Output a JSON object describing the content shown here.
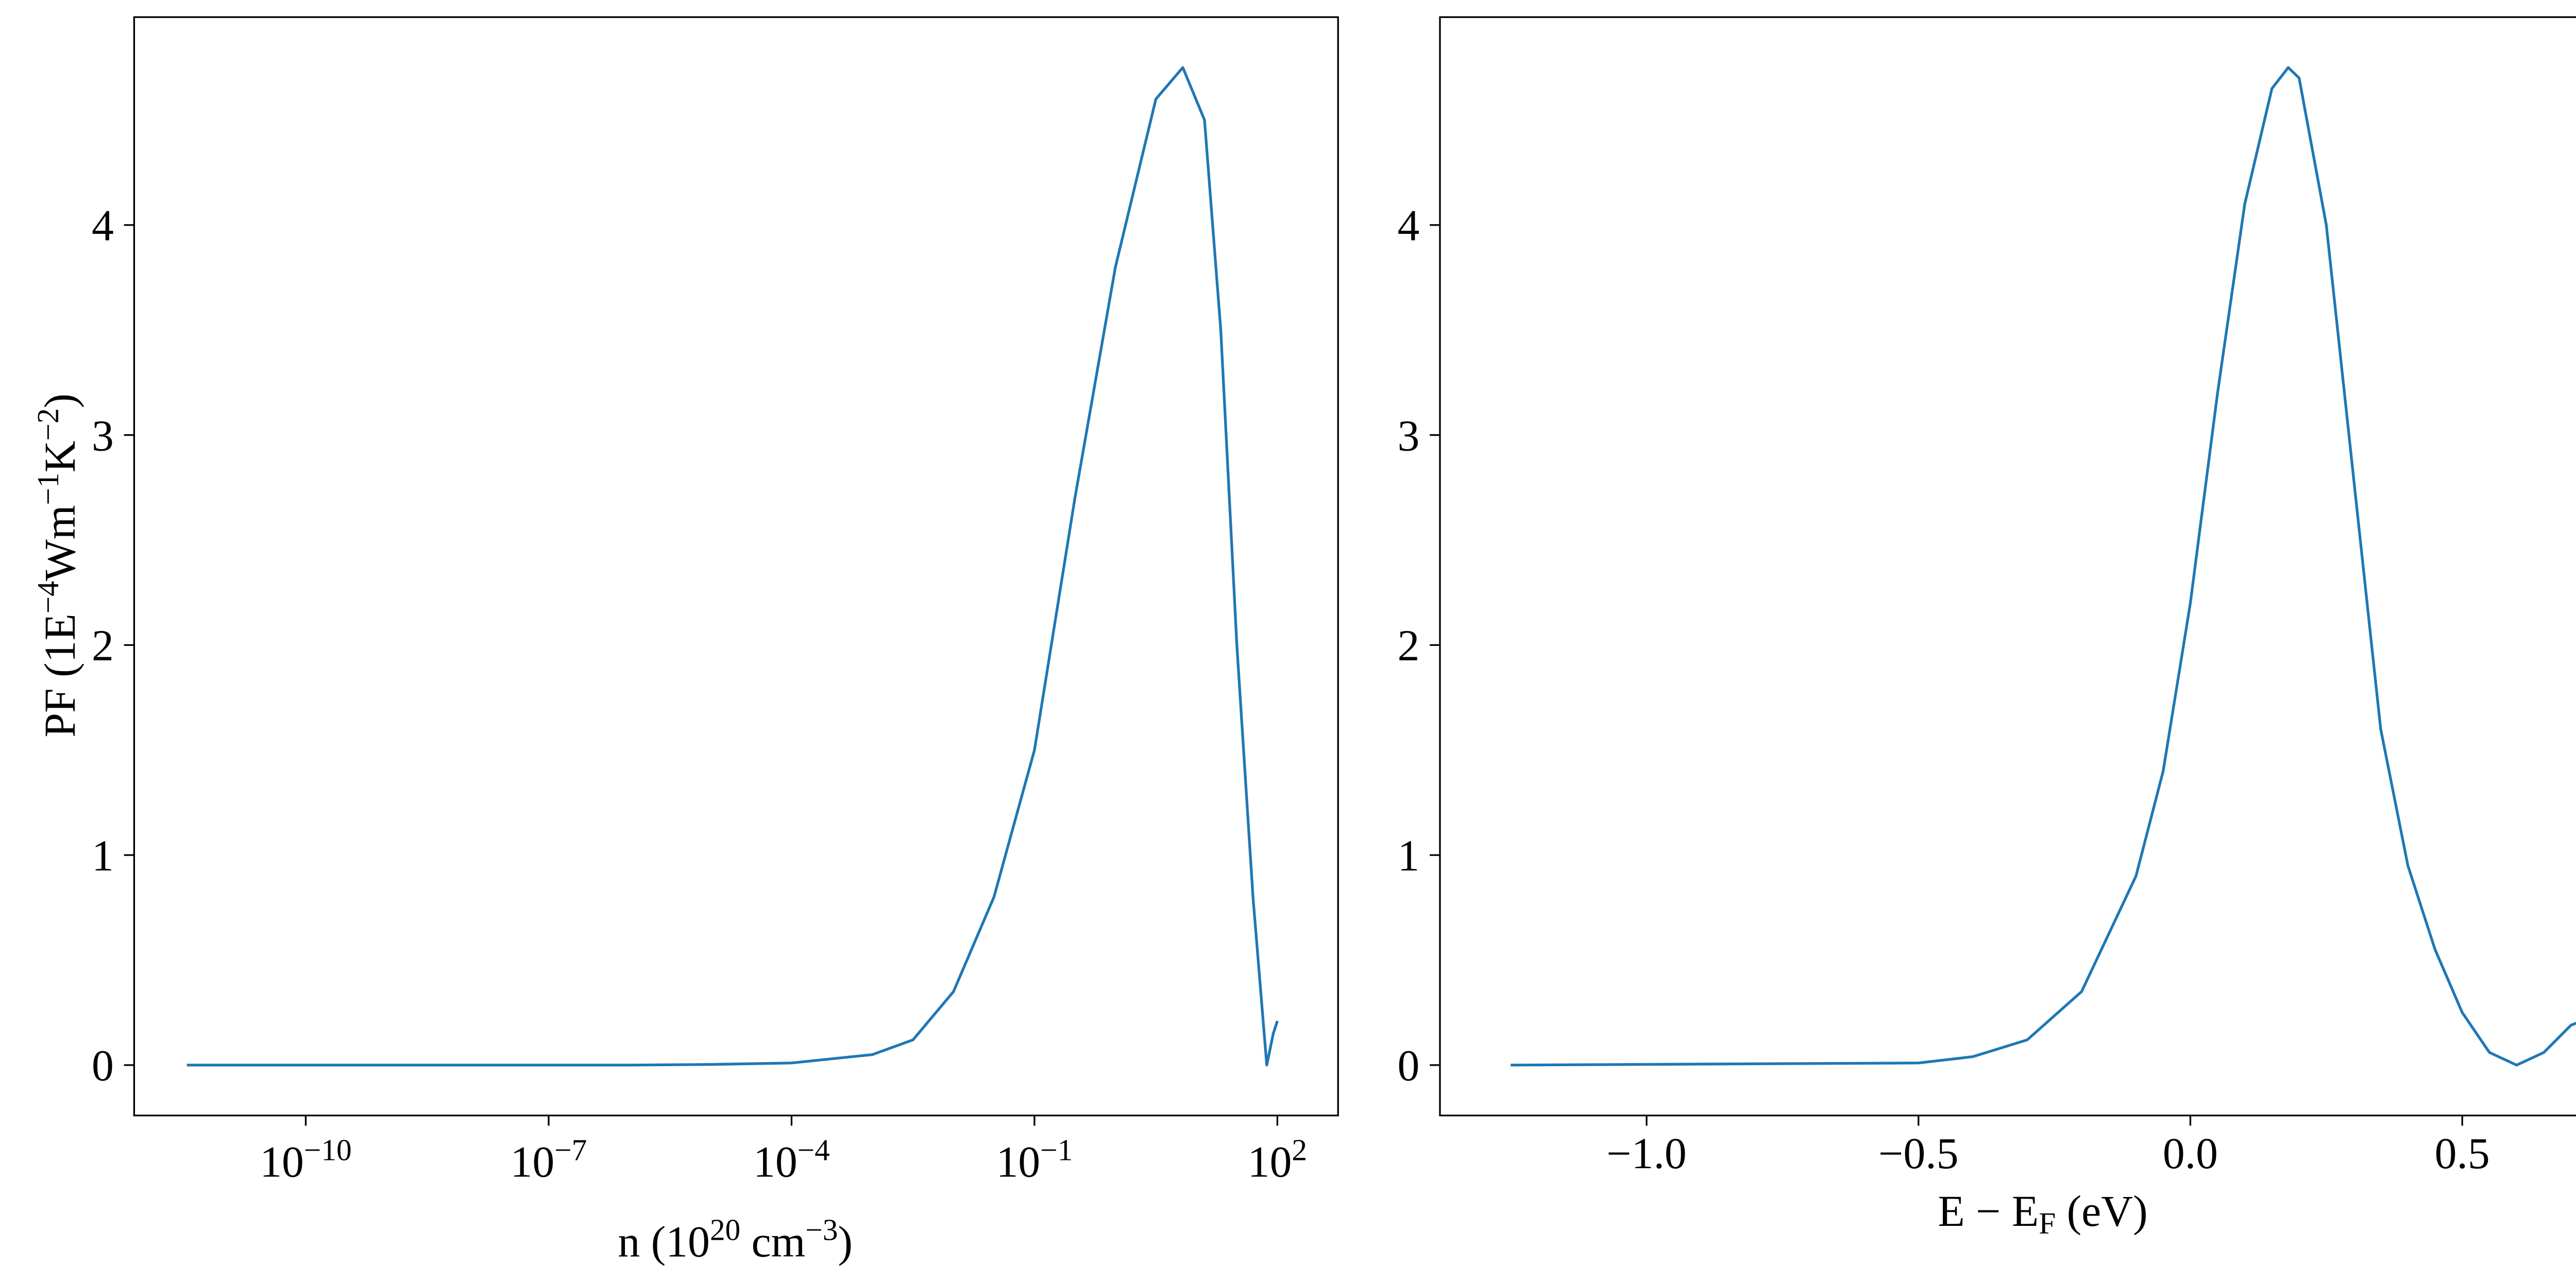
{
  "chart_data": [
    {
      "type": "line",
      "xscale": "log",
      "color": "#1f77b4",
      "xlabel": [
        "n (10",
        "20",
        " cm",
        "−3",
        ")"
      ],
      "ylabel": [
        "PF (1E",
        "−4",
        "Wm",
        "−1",
        "K",
        "−2",
        ")"
      ],
      "x": [
        3.4e-12,
        1e-09,
        1e-06,
        1e-05,
        0.0001,
        0.001,
        0.00316,
        0.01,
        0.0316,
        0.1,
        0.316,
        1,
        3.16,
        6.8,
        12.6,
        20,
        31.6,
        50,
        74,
        89,
        100
      ],
      "values": [
        0,
        0,
        0,
        0.003,
        0.01,
        0.05,
        0.12,
        0.35,
        0.8,
        1.5,
        2.7,
        3.8,
        4.6,
        4.75,
        4.5,
        3.5,
        2.0,
        0.8,
        0,
        0.15,
        0.21
      ],
      "xlim": [
        7.6e-13,
        562
      ],
      "ylim": [
        -0.24,
        4.99
      ],
      "xticks": [
        {
          "value": 1e-10,
          "label": "10−10"
        },
        {
          "value": 1e-07,
          "label": "10−7"
        },
        {
          "value": 0.0001,
          "label": "10−4"
        },
        {
          "value": 0.1,
          "label": "10−1"
        },
        {
          "value": 100,
          "label": "102"
        }
      ],
      "yticks": [
        0,
        1,
        2,
        3,
        4
      ]
    },
    {
      "type": "line",
      "color": "#1f77b4",
      "xlabel": [
        "E − E",
        "F",
        " (eV)"
      ],
      "x": [
        -1.25,
        -0.5,
        -0.4,
        -0.3,
        -0.2,
        -0.1,
        -0.05,
        0,
        0.05,
        0.1,
        0.15,
        0.18,
        0.2,
        0.25,
        0.3,
        0.35,
        0.4,
        0.45,
        0.5,
        0.55,
        0.6,
        0.65,
        0.7,
        0.72
      ],
      "values": [
        0,
        0.01,
        0.04,
        0.12,
        0.35,
        0.9,
        1.4,
        2.2,
        3.2,
        4.1,
        4.65,
        4.75,
        4.7,
        4.0,
        2.8,
        1.6,
        0.95,
        0.55,
        0.25,
        0.06,
        0,
        0.06,
        0.19,
        0.21
      ],
      "xlim": [
        -1.38,
        0.834
      ],
      "ylim": [
        -0.24,
        4.99
      ],
      "xticks": [
        {
          "value": -1.0,
          "label": "−1.0"
        },
        {
          "value": -0.5,
          "label": "−0.5"
        },
        {
          "value": 0.0,
          "label": "0.0"
        },
        0.5
      ],
      "yticks": [
        0,
        1,
        2,
        3,
        4
      ]
    }
  ]
}
